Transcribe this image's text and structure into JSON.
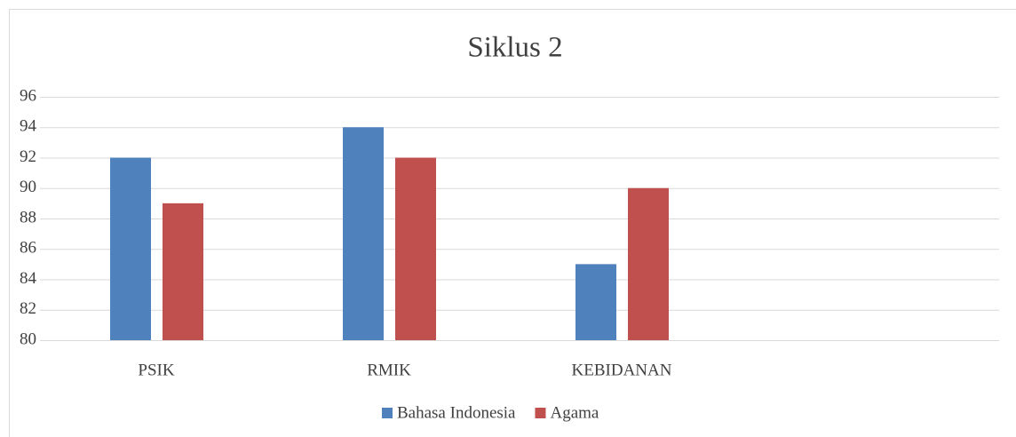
{
  "chart_data": {
    "type": "bar",
    "title": "Siklus 2",
    "categories": [
      "PSIK",
      "RMIK",
      "KEBIDANAN",
      null
    ],
    "series": [
      {
        "name": "Bahasa Indonesia",
        "color": "#4f81bd",
        "values": [
          92,
          94,
          85,
          null
        ]
      },
      {
        "name": "Agama",
        "color": "#c0504d",
        "values": [
          89,
          92,
          90,
          null
        ]
      }
    ],
    "ylim": [
      80,
      96
    ],
    "yticks": [
      80,
      82,
      84,
      86,
      88,
      90,
      92,
      94,
      96
    ],
    "grid": true,
    "legend": "bottom"
  }
}
